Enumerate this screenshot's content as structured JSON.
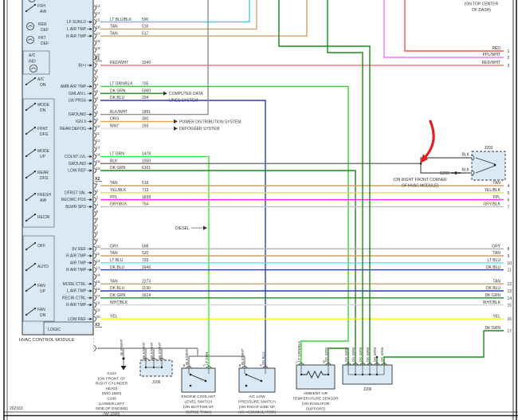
{
  "page_code": "262163",
  "module": {
    "name": "HVAC CONTROL MODULE",
    "logic_label": "LOGIC",
    "buttons": [
      {
        "lines": [
          "FSH",
          "AIR"
        ],
        "type": "switch"
      },
      {
        "lines": [
          "RER",
          "DEF"
        ],
        "type": "lamp"
      },
      {
        "lines": [
          "FRT",
          "DEF"
        ],
        "type": "lamp"
      },
      {
        "lines": [
          "A/C",
          "IND"
        ],
        "type": "lamp-boxed"
      },
      {
        "lines": [
          "A/C",
          "ON"
        ],
        "type": "switch"
      },
      {
        "lines": [
          "MODE",
          "DN"
        ],
        "type": "switch"
      },
      {
        "lines": [
          "FRNT",
          "DFG"
        ],
        "type": "switch"
      },
      {
        "lines": [
          "MODE",
          "UP"
        ],
        "type": "switch"
      },
      {
        "lines": [
          "REAR",
          "DFG"
        ],
        "type": "switch"
      },
      {
        "lines": [
          "FRESH",
          "AIR"
        ],
        "type": "switch"
      },
      {
        "lines": [
          "RECIR"
        ],
        "type": "switch"
      },
      {
        "lines": [
          "OFF"
        ],
        "type": "switch"
      },
      {
        "lines": [
          "AUTO"
        ],
        "type": "switch"
      },
      {
        "lines": [
          "FAN",
          "UP"
        ],
        "type": "switch"
      },
      {
        "lines": [
          "FAN",
          "DN"
        ],
        "type": "switch"
      }
    ]
  },
  "sections": [
    {
      "id": "",
      "rows": [
        {
          "pin": "13"
        },
        {
          "pin": "14"
        },
        {
          "pin": "15",
          "label": "LF SUNLD",
          "color": "LT BLU/BLK",
          "circuit": "590"
        },
        {
          "pin": "16",
          "label": "L AIR TMP",
          "color": "TAN",
          "circuit": "516"
        },
        {
          "pin": "17",
          "label": "R AIR TMP",
          "color": "TAN",
          "circuit": "517"
        },
        {
          "pin": "18"
        },
        {
          "pin": "19"
        },
        {
          "pin": "20"
        }
      ]
    },
    {
      "id": "X1",
      "rows": [
        {
          "pin": "1",
          "label": "B(+)",
          "color": "RED/WHT",
          "circuit": "3340"
        },
        {
          "pin": "2"
        },
        {
          "pin": "3"
        },
        {
          "pin": "4",
          "label": "AMB AIR TMP",
          "color": "LT GRN/BLK",
          "circuit": "735"
        },
        {
          "pin": "5",
          "label": "GMLAN L",
          "color": "DK GRN",
          "circuit": "5060"
        },
        {
          "pin": "6",
          "label": "LW PRSS",
          "color": "DK BLU",
          "circuit": "204"
        },
        {
          "pin": "7"
        },
        {
          "pin": "8",
          "label": "GROUND",
          "color": "BLK/WHT",
          "circuit": "1851"
        },
        {
          "pin": "9",
          "label": "IGN 3",
          "color": "ORG",
          "circuit": "300"
        },
        {
          "pin": "10",
          "label": "REAR DEFOG",
          "color": "WHT",
          "circuit": "193"
        },
        {
          "pin": "11"
        },
        {
          "pin": "12"
        },
        {
          "pin": "13"
        },
        {
          "pin": "14",
          "label": "COLNT LVL",
          "color": "LT GRN",
          "circuit": "1478"
        },
        {
          "pin": "15",
          "label": "GROUND",
          "color": "BLK",
          "circuit": "1050"
        },
        {
          "pin": "16",
          "label": "LOW REF",
          "color": "DK GRN",
          "circuit": "6101"
        }
      ]
    },
    {
      "id": "X2",
      "rows": [
        {
          "pin": "1",
          "color": "TAN",
          "circuit": "518"
        },
        {
          "pin": "2",
          "label": "DFRST VAL",
          "color": "YEL/BLK",
          "circuit": "713"
        },
        {
          "pin": "3",
          "label": "RECIRC POS",
          "color": "PPL",
          "circuit": "1838"
        },
        {
          "pin": "4",
          "label": "BLWR SPD",
          "color": "GRY/BLK",
          "circuit": "754"
        },
        {
          "pin": "5"
        },
        {
          "pin": "6"
        },
        {
          "pin": "7"
        },
        {
          "pin": "8"
        },
        {
          "pin": "9"
        },
        {
          "pin": "10",
          "label": "5V REF",
          "color": "GRY",
          "circuit": "598"
        },
        {
          "pin": "11",
          "label": "R AIR TMP",
          "color": "TAN",
          "circuit": "520"
        },
        {
          "pin": "12",
          "label": "AIR TMP",
          "color": "LT BLU",
          "circuit": "733"
        },
        {
          "pin": "13",
          "label": "R AIR TMP",
          "color": "DK BLU",
          "circuit": "1646"
        },
        {
          "pin": "14"
        },
        {
          "pin": "15",
          "label": "MODE CTRL",
          "color": "TAN",
          "circuit": "2273"
        },
        {
          "pin": "16",
          "label": "L AIR TMP",
          "color": "DK BLU",
          "circuit": "1199"
        },
        {
          "pin": "17",
          "label": "RECIR CTRL",
          "color": "DK GRN",
          "circuit": "1614"
        },
        {
          "pin": "18",
          "label": "R AIR TMP",
          "color": "WHT/BLK"
        },
        {
          "pin": "19"
        },
        {
          "pin": "20",
          "label": "LOW REF",
          "color": "YEL"
        }
      ]
    },
    {
      "id": "X3",
      "rows": []
    }
  ],
  "right_edge": [
    {
      "n": "1",
      "color": "RED"
    },
    {
      "n": "2",
      "color": "PPL/WHT"
    },
    {
      "n": "3",
      "color": "RED/WHT"
    },
    {
      "n": "4",
      "color": "TAN"
    },
    {
      "n": "5",
      "color": "YEL/BLK"
    },
    {
      "n": "6",
      "color": "PPL"
    },
    {
      "n": "7",
      "color": "GRY/BLK"
    },
    {
      "n": "8",
      "color": "GRY"
    },
    {
      "n": "9",
      "color": "TAN"
    },
    {
      "n": "10",
      "color": "LT BLU"
    },
    {
      "n": "11",
      "color": "DK BLU"
    },
    {
      "n": "12",
      "color": "TAN"
    },
    {
      "n": "13",
      "color": "DK BLU"
    },
    {
      "n": "14",
      "color": "DK GRN"
    },
    {
      "n": "15",
      "color": "WHT/BLK"
    },
    {
      "n": "16",
      "color": "YEL"
    },
    {
      "n": "17",
      "color": "DK GRN"
    }
  ],
  "annotations": {
    "dash_note": [
      "(ON TOP CENTER",
      "OF DASH)"
    ],
    "computer_data": [
      "COMPUTER DATA",
      "LINES SYSTEM"
    ],
    "power": "POWER DISTRIBUTION SYSTEM",
    "defogger": "DEFOGGER SYSTEM",
    "diesel": "DIESEL",
    "g200": {
      "name": "G200",
      "wire_top": "BLK",
      "wire_bottom": "BLK",
      "connector": "J203",
      "location": [
        "(ON RIGHT FRONT CORNER",
        "OF HVAC MODULE)"
      ]
    }
  },
  "components": {
    "grounds": {
      "wire": "BLK/WHT",
      "lines": [
        "G103",
        "(ON FRONT OF",
        "RIGHT CYLINDER",
        "HEAD)",
        "(W/O 1500)",
        "G106",
        "(LOWER LEFT",
        "SIDE OF ENGINE)",
        "(W/ 1500)"
      ]
    },
    "j106": {
      "name": "J106",
      "wires": [
        "BLK/WHT",
        "BLK/WHT",
        "BLK/WHT"
      ]
    },
    "coolant_switch": {
      "lines": [
        "ENGINE COOLANT",
        "LEVEL SWITCH",
        "(ON BOTTOM OF",
        "SURGE TANK)"
      ],
      "pins": [
        {
          "id": "B",
          "wire": "BLK/WHT"
        },
        {
          "id": "A",
          "wire": "LT GRN"
        }
      ]
    },
    "pressure_switch": {
      "lines": [
        "A/C LOW",
        "PRESSURE SWITCH",
        "(ON RIGHT SIDE OF",
        "A/C ACCUMULATOR)"
      ],
      "pins": [
        {
          "id": "B",
          "wire": "BLK/WHT"
        },
        {
          "id": "A",
          "wire": "DK BLU"
        }
      ]
    },
    "ambient_sensor": {
      "lines": [
        "AMBIENT AIR",
        "TEMPERATURE SENSOR",
        "(ON RADIATOR",
        "SUPPORT)"
      ],
      "pins": [
        {
          "id": "A",
          "wire": "LT GRN/BLK"
        },
        {
          "id": "B",
          "wire": "DK GRN"
        }
      ]
    },
    "j206": {
      "name": "J206",
      "wires": [
        "DK GRN",
        "DK GRN",
        "DK GRN",
        "DK GRN",
        "DK GRN",
        "DK GRN"
      ]
    }
  },
  "wire_colors": {
    "LT BLU/BLK": "#3ecfe8",
    "TAN": "#c9a56b",
    "RED/WHT": "#f47c7c",
    "LT GRN/BLK": "#35d435",
    "DK GRN": "#1b8a1b",
    "DK BLU": "#2a3fae",
    "BLK/WHT": "#8f8f8f",
    "ORG": "#f5a23c",
    "WHT": "#e0e0e0",
    "LT GRN": "#3ae83a",
    "BLK": "#6e6e6e",
    "YEL/BLK": "#e0e055",
    "PPL": "#fb2dfb",
    "GRY/BLK": "#bdbdbd",
    "GRY": "#b3b3b3",
    "LT BLU": "#59e1f2",
    "YEL": "#f2f22e",
    "WHT/BLK": "#d4d4d4",
    "RED": "#f25454",
    "PPL/WHT": "#f57df5"
  },
  "colors": {
    "module_fill": "#d9e9f6",
    "annotation_arrow": "#e02222",
    "ink": "#333333"
  }
}
